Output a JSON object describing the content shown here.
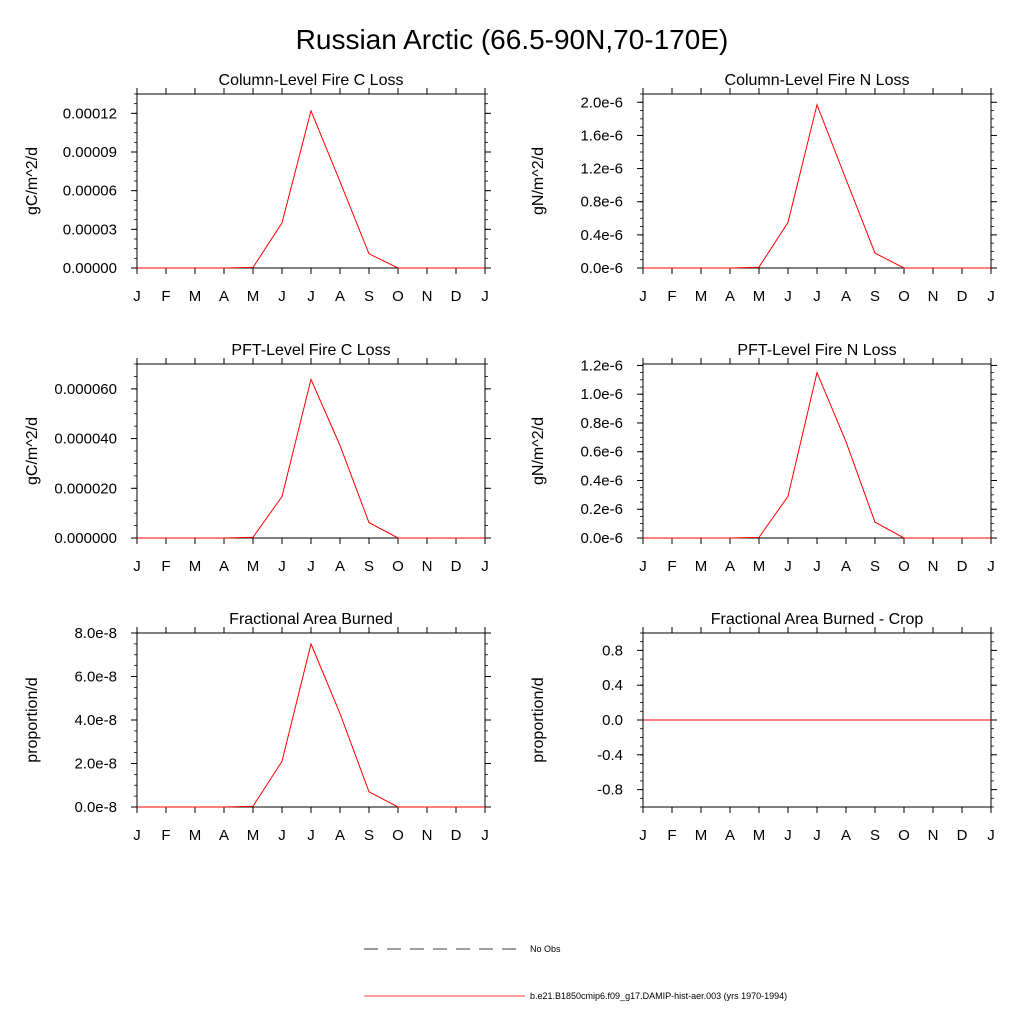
{
  "title": "Russian Arctic (66.5-90N,70-170E)",
  "months": [
    "J",
    "F",
    "M",
    "A",
    "M",
    "J",
    "J",
    "A",
    "S",
    "O",
    "N",
    "D",
    "J"
  ],
  "chart_data": [
    {
      "type": "line",
      "title": "Column-Level Fire C Loss",
      "ylabel": "gC/m^2/d",
      "ylim": [
        0,
        0.000135
      ],
      "yticks": [
        0,
        3e-05,
        6e-05,
        9e-05,
        0.00012
      ],
      "ytick_labels": [
        "0.00000",
        "0.00003",
        "0.00006",
        "0.00009",
        "0.00012"
      ],
      "series": [
        {
          "values": [
            0,
            0,
            0,
            0,
            5e-07,
            3.5e-05,
            0.000122,
            6.7e-05,
            1.1e-05,
            0,
            0,
            0,
            0
          ]
        }
      ]
    },
    {
      "type": "line",
      "title": "Column-Level Fire N Loss",
      "ylabel": "gN/m^2/d",
      "ylim": [
        0,
        2.1e-06
      ],
      "yticks": [
        0,
        4e-07,
        8e-07,
        1.2e-06,
        1.6e-06,
        2e-06
      ],
      "ytick_labels": [
        "0.0e-6",
        "0.4e-6",
        "0.8e-6",
        "1.2e-6",
        "1.6e-6",
        "2.0e-6"
      ],
      "series": [
        {
          "values": [
            0,
            0,
            0,
            0,
            1e-08,
            5.5e-07,
            1.97e-06,
            1.07e-06,
            1.8e-07,
            0,
            0,
            0,
            0
          ]
        }
      ]
    },
    {
      "type": "line",
      "title": "PFT-Level Fire C Loss",
      "ylabel": "gC/m^2/d",
      "ylim": [
        0,
        7e-05
      ],
      "yticks": [
        0,
        2e-05,
        4e-05,
        6e-05
      ],
      "ytick_labels": [
        "0.000000",
        "0.000020",
        "0.000040",
        "0.000060"
      ],
      "series": [
        {
          "values": [
            0,
            0,
            0,
            0,
            3e-07,
            1.67e-05,
            6.38e-05,
            3.72e-05,
            6.2e-06,
            0,
            0,
            0,
            0
          ]
        }
      ]
    },
    {
      "type": "line",
      "title": "PFT-Level Fire N Loss",
      "ylabel": "gN/m^2/d",
      "ylim": [
        0,
        1.21e-06
      ],
      "yticks": [
        0,
        2e-07,
        4e-07,
        6e-07,
        8e-07,
        1e-06,
        1.2e-06
      ],
      "ytick_labels": [
        "0.0e-6",
        "0.2e-6",
        "0.4e-6",
        "0.6e-6",
        "0.8e-6",
        "1.0e-6",
        "1.2e-6"
      ],
      "series": [
        {
          "values": [
            0,
            0,
            0,
            0,
            4e-09,
            2.9e-07,
            1.15e-06,
            6.7e-07,
            1.1e-07,
            0,
            0,
            0,
            0
          ]
        }
      ]
    },
    {
      "type": "line",
      "title": "Fractional Area Burned",
      "ylabel": "proportion/d",
      "ylim": [
        0,
        8e-08
      ],
      "yticks": [
        0,
        2e-08,
        4e-08,
        6e-08,
        8e-08
      ],
      "ytick_labels": [
        "0.0e-8",
        "2.0e-8",
        "4.0e-8",
        "6.0e-8",
        "8.0e-8"
      ],
      "series": [
        {
          "values": [
            0,
            0,
            0,
            0,
            3e-10,
            2.1e-08,
            7.5e-08,
            4.3e-08,
            7e-09,
            0,
            0,
            0,
            0
          ]
        }
      ]
    },
    {
      "type": "line",
      "title": "Fractional Area Burned - Crop",
      "ylabel": "proportion/d",
      "ylim": [
        -1,
        1
      ],
      "yticks": [
        -0.8,
        -0.4,
        0,
        0.4,
        0.8
      ],
      "ytick_labels": [
        "-0.8",
        "-0.4",
        "0.0",
        "0.4",
        "0.8"
      ],
      "series": [
        {
          "values": [
            0,
            0,
            0,
            0,
            0,
            0,
            0,
            0,
            0,
            0,
            0,
            0,
            0
          ]
        }
      ]
    }
  ],
  "legend": {
    "items": [
      {
        "label": "No Obs",
        "style": "dashed",
        "color": "#000000"
      },
      {
        "label": "b.e21.B1850cmip6.f09_g17.DAMIP-hist-aer.003 (yrs 1970-1994)",
        "style": "solid",
        "color": "#ff0000"
      }
    ]
  },
  "colors": {
    "series": "#ff0000",
    "axes": "#000000"
  }
}
